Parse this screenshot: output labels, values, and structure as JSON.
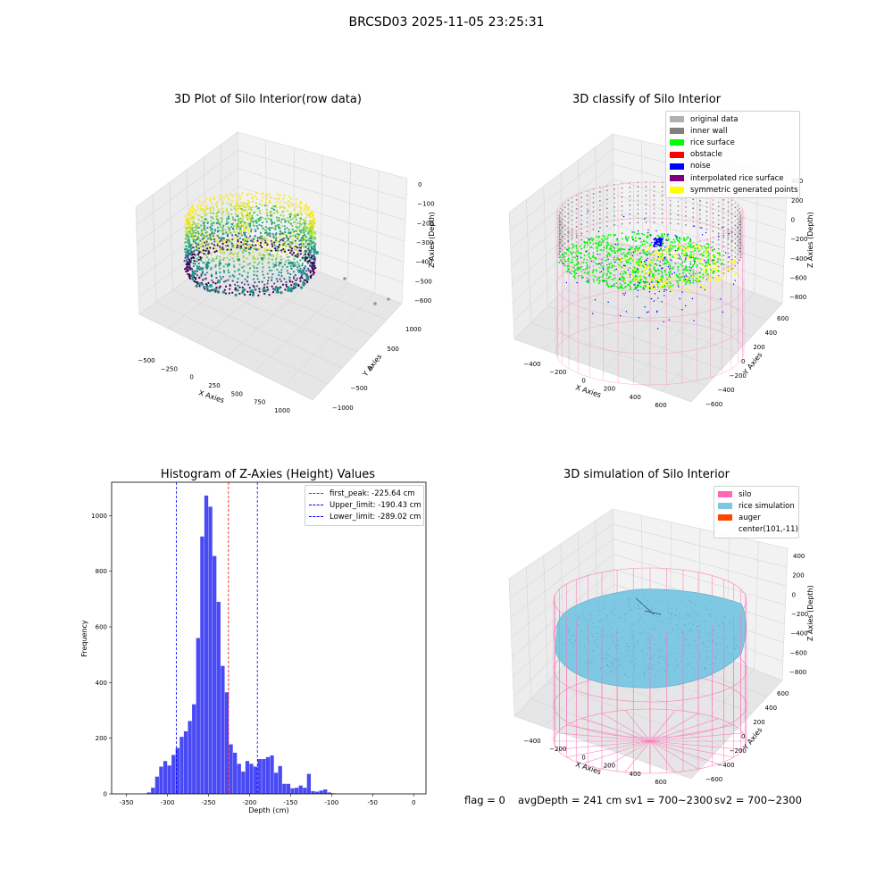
{
  "suptitle": "BRCSD03 2025-11-05 23:25:31",
  "footer": {
    "flag": "flag = 0",
    "avg_depth": "avgDepth = 241 cm",
    "sv1": "sv1 = 700~2300",
    "sv2": "sv2 = 700~2300"
  },
  "colors": {
    "histogram_bar": "#4a4af5",
    "first_peak": "#ff0000",
    "limits": "#0000ff",
    "silo_wire": "#ff69b4",
    "rice_simulation": "#7ec8e3",
    "auger": "#ff4500",
    "rice_surface": "#00ff00",
    "inner_wall": "#808080",
    "noise": "#0000ff",
    "symmetric": "#ffff00"
  },
  "chart_data": [
    {
      "type": "scatter",
      "subtype": "3d_scatter",
      "title": "3D Plot of Silo Interior(row data)",
      "xlabel": "X Axies",
      "ylabel": "Y Axies",
      "zlabel": "Z Axies (Depth)",
      "x_ticks": [
        "−500",
        "−250",
        "0",
        "250",
        "500",
        "750",
        "1000"
      ],
      "y_ticks": [
        "−1000",
        "−500",
        "0",
        "500",
        "1000"
      ],
      "z_ticks": [
        "0",
        "−100",
        "−200",
        "−300",
        "−400",
        "−500",
        "−600"
      ],
      "colormap": "viridis"
    },
    {
      "type": "scatter",
      "subtype": "3d_scatter",
      "title": "3D classify of Silo Interior",
      "xlabel": "X Axies",
      "ylabel": "Y Axies",
      "zlabel": "Z Axies (Depth)",
      "x_ticks": [
        "−400",
        "−200",
        "0",
        "200",
        "400",
        "600"
      ],
      "y_ticks": [
        "−600",
        "−400",
        "−200",
        "0",
        "200",
        "400",
        "600"
      ],
      "z_ticks": [
        "200",
        "0",
        "−200",
        "−400",
        "−600",
        "−800"
      ],
      "z_top_label": "400",
      "legend": [
        {
          "label": "original data",
          "color": "#b0b0b0"
        },
        {
          "label": "inner wall",
          "color": "#808080"
        },
        {
          "label": "rice surface",
          "color": "#00ff00"
        },
        {
          "label": "obstacle",
          "color": "#ff0000"
        },
        {
          "label": "noise",
          "color": "#0000ff"
        },
        {
          "label": "interpolated rice surface",
          "color": "#800080"
        },
        {
          "label": "symmetric generated points",
          "color": "#ffff00"
        }
      ]
    },
    {
      "type": "bar",
      "subtype": "histogram",
      "title": "Histogram of Z-Axies (Height) Values",
      "xlabel": "Depth (cm)",
      "ylabel": "Frequency",
      "xlim": [
        -368,
        15
      ],
      "ylim": [
        0,
        1120
      ],
      "x_ticks": [
        -350,
        -300,
        -250,
        -200,
        -150,
        -100,
        -50,
        0
      ],
      "y_ticks": [
        0,
        200,
        400,
        600,
        800,
        1000
      ],
      "bin_start": -325,
      "bin_width": 5,
      "values": [
        5,
        22,
        62,
        98,
        118,
        102,
        140,
        165,
        205,
        225,
        262,
        322,
        560,
        925,
        1072,
        1032,
        855,
        690,
        460,
        365,
        178,
        148,
        108,
        80,
        118,
        108,
        98,
        125,
        125,
        132,
        138,
        76,
        100,
        36,
        36,
        20,
        22,
        30,
        22,
        72,
        10,
        8,
        12,
        16,
        5,
        2
      ],
      "lines": [
        {
          "label": "first_peak: -225.64 cm",
          "x": -225.64,
          "color": "#ff0000"
        },
        {
          "label": "Upper_limit: -190.43 cm",
          "x": -190.43,
          "color": "#0000ff"
        },
        {
          "label": "Lower_limit: -289.02 cm",
          "x": -289.02,
          "color": "#0000ff"
        }
      ]
    },
    {
      "type": "area",
      "subtype": "3d_surface",
      "title": "3D simulation of Silo Interior",
      "xlabel": "X Axies",
      "ylabel": "Y Axies",
      "zlabel": "Z Axies (Depth)",
      "x_ticks": [
        "−400",
        "−200",
        "0",
        "200",
        "400",
        "600"
      ],
      "y_ticks": [
        "−600",
        "−400",
        "−200",
        "0",
        "200",
        "400",
        "600"
      ],
      "z_ticks": [
        "400",
        "200",
        "0",
        "−200",
        "−400",
        "−600",
        "−800"
      ],
      "legend": [
        {
          "label": "silo",
          "color": "#ff69b4"
        },
        {
          "label": "rice simulation",
          "color": "#7ec8e3"
        },
        {
          "label": "auger",
          "color": "#ff4500"
        },
        {
          "label": "center(101,-11)",
          "color": ""
        }
      ]
    }
  ]
}
